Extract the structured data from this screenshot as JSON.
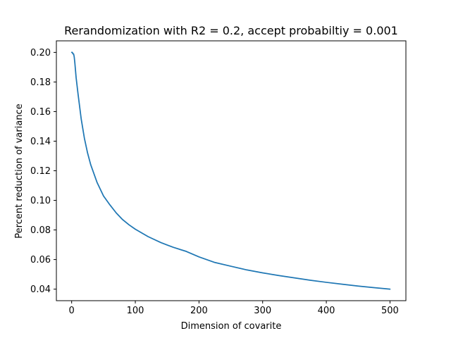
{
  "chart_data": {
    "type": "line",
    "title": "Rerandomization with R2 = 0.2, accept probabiltiy = 0.001",
    "xlabel": "Dimension of covarite",
    "ylabel": "Percent reduction of variance",
    "xlim": [
      -24,
      525
    ],
    "ylim": [
      0.0322,
      0.2078
    ],
    "xticks": [
      0,
      100,
      200,
      300,
      400,
      500
    ],
    "yticks": [
      0.04,
      0.06,
      0.08,
      0.1,
      0.12,
      0.14,
      0.16,
      0.18,
      0.2
    ],
    "xtick_labels": [
      "0",
      "100",
      "200",
      "300",
      "400",
      "500"
    ],
    "ytick_labels": [
      "0.04",
      "0.06",
      "0.08",
      "0.10",
      "0.12",
      "0.14",
      "0.16",
      "0.18",
      "0.20"
    ],
    "grid": false,
    "color": "#1f77b4",
    "series": [
      {
        "x": [
          0,
          1,
          2,
          3,
          4,
          5,
          7,
          10,
          15,
          20,
          25,
          30,
          40,
          50,
          60,
          70,
          80,
          90,
          100,
          120,
          140,
          150,
          160,
          180,
          200,
          225,
          250,
          275,
          300,
          325,
          350,
          375,
          400,
          425,
          450,
          475,
          500
        ],
        "y": [
          0.2,
          0.2,
          0.199,
          0.199,
          0.197,
          0.193,
          0.183,
          0.172,
          0.155,
          0.142,
          0.132,
          0.124,
          0.112,
          0.103,
          0.097,
          0.0915,
          0.087,
          0.0835,
          0.0805,
          0.0755,
          0.0715,
          0.0698,
          0.0682,
          0.0655,
          0.0618,
          0.058,
          0.0555,
          0.053,
          0.051,
          0.0492,
          0.0476,
          0.046,
          0.0446,
          0.0433,
          0.0421,
          0.041,
          0.04
        ]
      }
    ]
  }
}
